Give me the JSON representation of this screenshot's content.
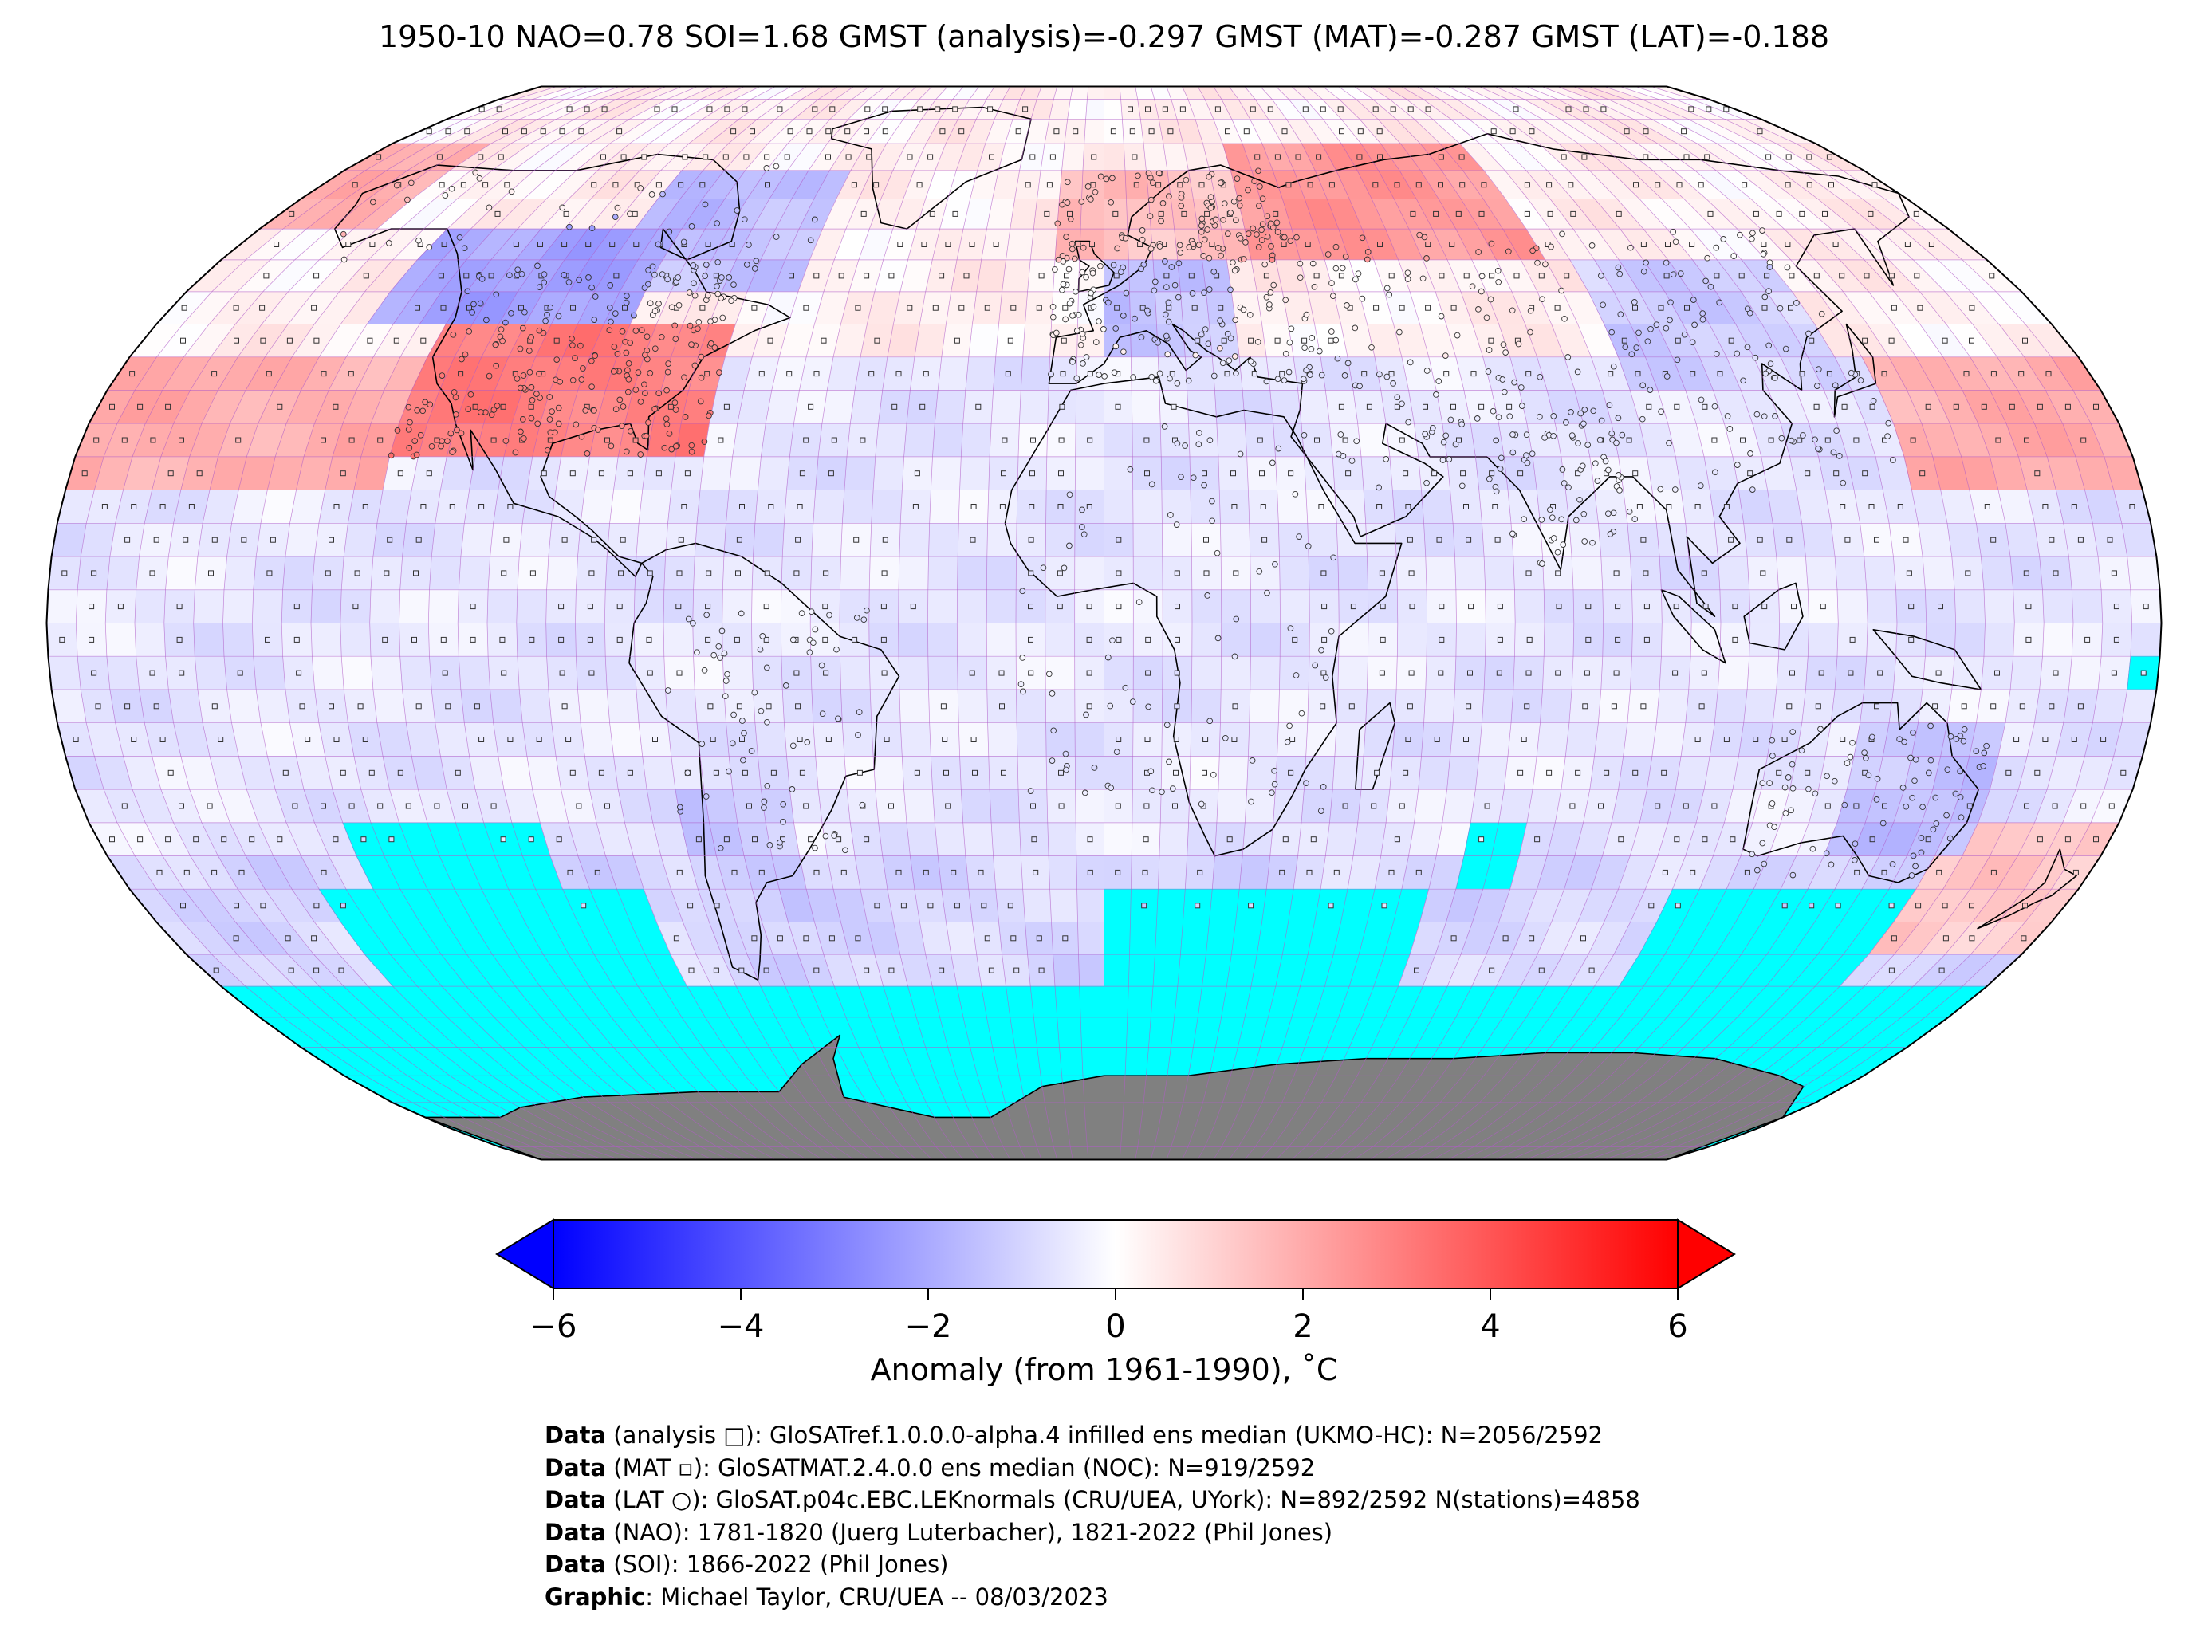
{
  "title": "1950-10 NAO=0.78 SOI=1.68 GMST (analysis)=-0.297 GMST (MAT)=-0.287 GMST (LAT)=-0.188",
  "projection": "Robinson",
  "colors": {
    "missing_data": "#00ffff",
    "land_mask": "#808080",
    "grid_lines": "#b05cc8",
    "cold_end": "#0000ff",
    "neutral": "#ffffff",
    "warm_end": "#ff0000"
  },
  "colorbar": {
    "min": -6,
    "max": 6,
    "extend": "both",
    "ticks": [
      {
        "value": -6,
        "label": "−6"
      },
      {
        "value": -4,
        "label": "−4"
      },
      {
        "value": -2,
        "label": "−2"
      },
      {
        "value": 0,
        "label": "0"
      },
      {
        "value": 2,
        "label": "2"
      },
      {
        "value": 4,
        "label": "4"
      },
      {
        "value": 6,
        "label": "6"
      }
    ],
    "label": "Anomaly (from 1961-1990), ˚C"
  },
  "credits": [
    {
      "key": "Data",
      "rest": " (analysis □): GloSATref.1.0.0.0-alpha.4 infilled ens median (UKMO-HC): N=2056/2592"
    },
    {
      "key": "Data",
      "rest": " (MAT ▫): GloSATMAT.2.4.0.0 ens median (NOC): N=919/2592"
    },
    {
      "key": "Data",
      "rest": " (LAT ○): GloSAT.p04c.EBC.LEKnormals (CRU/UEA, UYork): N=892/2592 N(stations)=4858"
    },
    {
      "key": "Data",
      "rest": " (NAO): 1781-1820 (Juerg Luterbacher), 1821-2022 (Phil Jones)"
    },
    {
      "key": "Data",
      "rest": " (SOI): 1866-2022 (Phil Jones)"
    },
    {
      "key": "Graphic",
      "rest": ": Michael Taylor, CRU/UEA -- 08/03/2023"
    }
  ]
}
